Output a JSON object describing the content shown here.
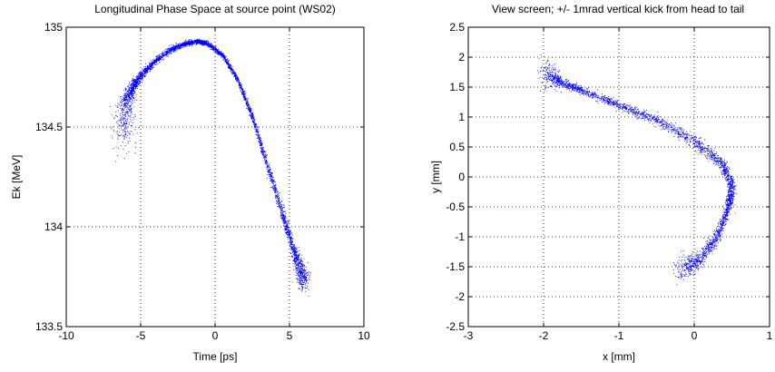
{
  "chart_data": [
    {
      "type": "scatter",
      "title": "Longitudinal Phase Space at source point (WS02)",
      "xlabel": "Time [ps]",
      "ylabel": "Ek [MeV]",
      "xlim": [
        -10,
        10
      ],
      "ylim": [
        133.5,
        135
      ],
      "xticks": [
        -10,
        -5,
        0,
        5,
        10
      ],
      "yticks": [
        133.5,
        134,
        134.5,
        135
      ],
      "xtick_labels": [
        "-10",
        "-5",
        "0",
        "5",
        "10"
      ],
      "ytick_labels": [
        "133.5",
        "134",
        "134.5",
        "135"
      ],
      "grid": true,
      "color": "#0000ff",
      "curve": [
        {
          "x": -6.2,
          "y": 134.45,
          "spread": 0.05
        },
        {
          "x": -6.0,
          "y": 134.62,
          "spread": 0.03
        },
        {
          "x": -5.6,
          "y": 134.7,
          "spread": 0.015
        },
        {
          "x": -5.0,
          "y": 134.76,
          "spread": 0.01
        },
        {
          "x": -4.2,
          "y": 134.82,
          "spread": 0.008
        },
        {
          "x": -3.0,
          "y": 134.89,
          "spread": 0.008
        },
        {
          "x": -2.0,
          "y": 134.92,
          "spread": 0.006
        },
        {
          "x": -1.2,
          "y": 134.93,
          "spread": 0.006
        },
        {
          "x": -0.5,
          "y": 134.92,
          "spread": 0.006
        },
        {
          "x": 0.5,
          "y": 134.86,
          "spread": 0.006
        },
        {
          "x": 1.5,
          "y": 134.74,
          "spread": 0.006
        },
        {
          "x": 2.5,
          "y": 134.55,
          "spread": 0.007
        },
        {
          "x": 3.5,
          "y": 134.31,
          "spread": 0.008
        },
        {
          "x": 4.5,
          "y": 134.07,
          "spread": 0.01
        },
        {
          "x": 5.2,
          "y": 133.9,
          "spread": 0.012
        },
        {
          "x": 5.7,
          "y": 133.79,
          "spread": 0.02
        },
        {
          "x": 6.0,
          "y": 133.72,
          "spread": 0.03
        }
      ]
    },
    {
      "type": "scatter",
      "title": "View screen; +/- 1mrad vertical kick from head to tail",
      "xlabel": "x [mm]",
      "ylabel": "y [mm]",
      "xlim": [
        -3,
        1
      ],
      "ylim": [
        -2.5,
        2.5
      ],
      "xticks": [
        -3,
        -2,
        -1,
        0,
        1
      ],
      "yticks": [
        -2.5,
        -2,
        -1.5,
        -1,
        -0.5,
        0,
        0.5,
        1,
        1.5,
        2,
        2.5
      ],
      "xtick_labels": [
        "-3",
        "-2",
        "-1",
        "0",
        "1"
      ],
      "ytick_labels": [
        "-2.5",
        "-2",
        "-1.5",
        "-1",
        "-0.5",
        "0",
        "0.5",
        "1",
        "1.5",
        "2",
        "2.5"
      ],
      "grid": true,
      "color": "#0000ff",
      "curve": [
        {
          "x": -0.2,
          "y": -1.55,
          "spread": 0.12
        },
        {
          "x": 0.05,
          "y": -1.4,
          "spread": 0.06
        },
        {
          "x": 0.3,
          "y": -1.0,
          "spread": 0.05
        },
        {
          "x": 0.45,
          "y": -0.5,
          "spread": 0.05
        },
        {
          "x": 0.5,
          "y": -0.15,
          "spread": 0.05
        },
        {
          "x": 0.35,
          "y": 0.25,
          "spread": 0.05
        },
        {
          "x": 0.0,
          "y": 0.6,
          "spread": 0.05
        },
        {
          "x": -0.5,
          "y": 0.95,
          "spread": 0.04
        },
        {
          "x": -1.0,
          "y": 1.2,
          "spread": 0.035
        },
        {
          "x": -1.5,
          "y": 1.45,
          "spread": 0.03
        },
        {
          "x": -1.8,
          "y": 1.6,
          "spread": 0.04
        },
        {
          "x": -2.0,
          "y": 1.75,
          "spread": 0.15
        }
      ]
    }
  ]
}
